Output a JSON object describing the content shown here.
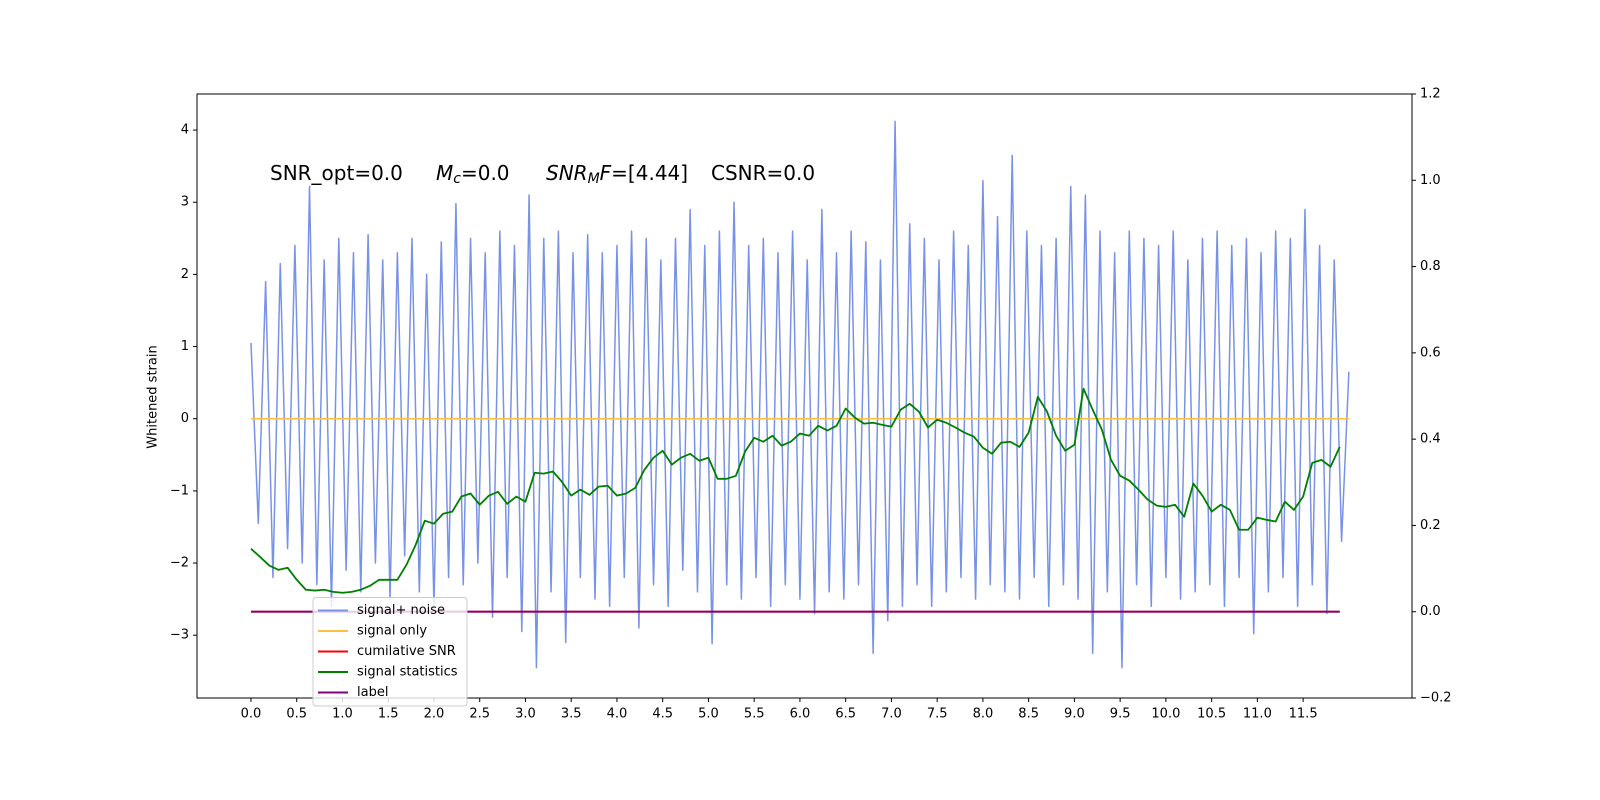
{
  "chart_data": {
    "type": "line",
    "ylabel": "Whitened strain",
    "annotations": [
      [
        "SNR_opt=0.0"
      ],
      [
        "M",
        "c",
        "=0.0"
      ],
      [
        "SNR",
        "M",
        "F",
        "=[4.44]"
      ],
      [
        "CSNR=0.0"
      ]
    ],
    "xlim": [
      -0.59,
      12.69
    ],
    "ylim": [
      -3.87,
      4.5
    ],
    "y2lim": [
      -0.2,
      1.2
    ],
    "xticks": [
      {
        "value": 0,
        "label": "0.0"
      },
      0.5,
      {
        "value": 1,
        "label": "1.0"
      },
      1.5,
      {
        "value": 2,
        "label": "2.0"
      },
      2.5,
      {
        "value": 3,
        "label": "3.0"
      },
      3.5,
      {
        "value": 4,
        "label": "4.0"
      },
      4.5,
      {
        "value": 5,
        "label": "5.0"
      },
      5.5,
      {
        "value": 6,
        "label": "6.0"
      },
      6.5,
      {
        "value": 7,
        "label": "7.0"
      },
      7.5,
      {
        "value": 8,
        "label": "8.0"
      },
      8.5,
      {
        "value": 9,
        "label": "9.0"
      },
      9.5,
      {
        "value": 10,
        "label": "10.0"
      },
      10.5,
      {
        "value": 11,
        "label": "11.0"
      },
      11.5
    ],
    "yticks": [
      {
        "value": -3,
        "label": "−3"
      },
      {
        "value": -2,
        "label": "−2"
      },
      {
        "value": -1,
        "label": "−1"
      },
      0,
      1,
      2,
      3,
      4
    ],
    "y2ticks": [
      {
        "value": -0.2,
        "label": "−0.2"
      },
      {
        "value": 0,
        "label": "0.0"
      },
      0.2,
      0.4,
      0.6,
      0.8,
      {
        "value": 1,
        "label": "1.0"
      },
      1.2
    ],
    "legend": "lower left",
    "series": [
      {
        "name": "signal+ noise",
        "color": "#7893e6",
        "x": [
          0,
          0.08,
          0.16,
          0.24,
          0.32,
          0.4,
          0.48,
          0.56,
          0.64,
          0.72,
          0.8,
          0.88,
          0.96,
          1.04,
          1.12,
          1.2,
          1.28,
          1.36,
          1.44,
          1.52,
          1.6,
          1.68,
          1.76,
          1.84,
          1.92,
          2,
          2.08,
          2.16,
          2.24,
          2.32,
          2.4,
          2.48,
          2.56,
          2.64,
          2.72,
          2.8,
          2.88,
          2.96,
          3.04,
          3.12,
          3.2,
          3.28,
          3.36,
          3.44,
          3.52,
          3.6,
          3.68,
          3.76,
          3.84,
          3.92,
          4,
          4.08,
          4.16,
          4.24,
          4.32,
          4.4,
          4.48,
          4.56,
          4.64,
          4.72,
          4.8,
          4.88,
          4.96,
          5.04,
          5.12,
          5.2,
          5.28,
          5.36,
          5.44,
          5.52,
          5.6,
          5.68,
          5.76,
          5.84,
          5.92,
          6,
          6.08,
          6.16,
          6.24,
          6.32,
          6.4,
          6.48,
          6.56,
          6.64,
          6.72,
          6.8,
          6.88,
          6.96,
          7.04,
          7.12,
          7.2,
          7.28,
          7.36,
          7.44,
          7.52,
          7.6,
          7.68,
          7.76,
          7.84,
          7.92,
          8,
          8.08,
          8.16,
          8.24,
          8.32,
          8.4,
          8.48,
          8.56,
          8.64,
          8.72,
          8.8,
          8.88,
          8.96,
          9.04,
          9.12,
          9.2,
          9.28,
          9.36,
          9.44,
          9.52,
          9.6,
          9.68,
          9.76,
          9.84,
          9.92,
          10,
          10.08,
          10.16,
          10.24,
          10.32,
          10.4,
          10.48,
          10.56,
          10.64,
          10.72,
          10.8,
          10.88,
          10.96,
          11.04,
          11.12,
          11.2,
          11.28,
          11.36,
          11.44,
          11.52,
          11.6,
          11.68,
          11.76,
          11.84,
          11.92,
          12
        ],
        "values": [
          1.05,
          -1.45,
          1.9,
          -2.2,
          2.15,
          -1.8,
          2.4,
          -2.0,
          3.22,
          -2.3,
          2.2,
          -2.6,
          2.5,
          -2.1,
          2.3,
          -2.4,
          2.55,
          -2.0,
          2.2,
          -2.5,
          2.3,
          -1.9,
          2.5,
          -2.4,
          2.0,
          -2.6,
          2.45,
          -2.2,
          2.98,
          -2.3,
          2.5,
          -2.0,
          2.3,
          -2.75,
          2.6,
          -2.2,
          2.4,
          -2.95,
          3.1,
          -3.45,
          2.5,
          -2.4,
          2.6,
          -3.1,
          2.3,
          -2.2,
          2.55,
          -2.5,
          2.3,
          -2.6,
          2.4,
          -2.2,
          2.6,
          -2.9,
          2.5,
          -2.3,
          2.2,
          -2.6,
          2.5,
          -2.1,
          2.9,
          -2.4,
          2.4,
          -3.12,
          2.6,
          -2.3,
          3.0,
          -2.5,
          2.4,
          -2.2,
          2.5,
          -2.6,
          2.3,
          -2.3,
          2.6,
          -2.5,
          2.2,
          -2.7,
          2.9,
          -2.4,
          2.3,
          -2.5,
          2.6,
          -2.3,
          2.45,
          -3.25,
          2.2,
          -2.8,
          4.12,
          -2.6,
          2.7,
          -2.3,
          2.5,
          -2.6,
          2.2,
          -2.4,
          2.6,
          -2.2,
          2.4,
          -2.5,
          3.3,
          -2.3,
          2.8,
          -2.4,
          3.65,
          -2.5,
          2.6,
          -2.2,
          2.4,
          -2.6,
          2.5,
          -2.3,
          3.22,
          -2.5,
          3.1,
          -3.25,
          2.6,
          -2.4,
          2.3,
          -3.45,
          2.6,
          -2.3,
          2.5,
          -2.6,
          2.4,
          -2.2,
          2.6,
          -2.5,
          2.2,
          -2.4,
          2.5,
          -2.3,
          2.6,
          -2.6,
          2.4,
          -2.2,
          2.5,
          -2.98,
          2.3,
          -2.4,
          2.6,
          -2.2,
          2.5,
          -2.6,
          2.9,
          -2.3,
          2.4,
          -2.7,
          2.2,
          -1.7,
          0.65
        ]
      },
      {
        "name": "signal only",
        "color": "#ffbf40",
        "x": [
          0,
          12
        ],
        "values": [
          0,
          0
        ]
      },
      {
        "name": "cumilative SNR",
        "color": "#ff0000",
        "axis": "y2",
        "x": [
          0,
          11.9
        ],
        "values": [
          0,
          0
        ]
      },
      {
        "name": "signal statistics",
        "color": "#007f00",
        "axis": "y2",
        "x": [
          0,
          0.1,
          0.2,
          0.3,
          0.4,
          0.5,
          0.6,
          0.7,
          0.8,
          0.9,
          1,
          1.1,
          1.2,
          1.3,
          1.4,
          1.5,
          1.6,
          1.7,
          1.8,
          1.9,
          2,
          2.1,
          2.2,
          2.3,
          2.4,
          2.5,
          2.6,
          2.7,
          2.8,
          2.9,
          3,
          3.1,
          3.2,
          3.3,
          3.4,
          3.5,
          3.6,
          3.7,
          3.8,
          3.9,
          4,
          4.1,
          4.2,
          4.3,
          4.4,
          4.5,
          4.6,
          4.7,
          4.8,
          4.9,
          5,
          5.1,
          5.2,
          5.3,
          5.4,
          5.5,
          5.6,
          5.7,
          5.8,
          5.9,
          6,
          6.1,
          6.2,
          6.3,
          6.4,
          6.5,
          6.6,
          6.7,
          6.8,
          6.9,
          7,
          7.1,
          7.2,
          7.3,
          7.4,
          7.5,
          7.6,
          7.7,
          7.8,
          7.9,
          8,
          8.1,
          8.2,
          8.3,
          8.4,
          8.5,
          8.6,
          8.7,
          8.8,
          8.9,
          9,
          9.1,
          9.2,
          9.3,
          9.4,
          9.5,
          9.6,
          9.7,
          9.8,
          9.9,
          10,
          10.1,
          10.2,
          10.3,
          10.4,
          10.5,
          10.6,
          10.7,
          10.8,
          10.9,
          11,
          11.1,
          11.2,
          11.3,
          11.4,
          11.5,
          11.6,
          11.7,
          11.8,
          11.9
        ],
        "values": [
          0.146,
          0.127,
          0.107,
          0.097,
          0.102,
          0.074,
          0.051,
          0.049,
          0.051,
          0.046,
          0.044,
          0.046,
          0.051,
          0.06,
          0.074,
          0.074,
          0.074,
          0.109,
          0.155,
          0.211,
          0.204,
          0.227,
          0.232,
          0.267,
          0.274,
          0.248,
          0.269,
          0.278,
          0.25,
          0.267,
          0.255,
          0.322,
          0.32,
          0.325,
          0.301,
          0.269,
          0.283,
          0.271,
          0.29,
          0.292,
          0.269,
          0.274,
          0.287,
          0.329,
          0.357,
          0.373,
          0.341,
          0.357,
          0.366,
          0.35,
          0.357,
          0.308,
          0.308,
          0.315,
          0.371,
          0.403,
          0.394,
          0.408,
          0.385,
          0.394,
          0.413,
          0.408,
          0.431,
          0.42,
          0.431,
          0.471,
          0.45,
          0.436,
          0.438,
          0.433,
          0.429,
          0.468,
          0.482,
          0.464,
          0.427,
          0.445,
          0.438,
          0.427,
          0.415,
          0.406,
          0.38,
          0.366,
          0.392,
          0.394,
          0.382,
          0.415,
          0.498,
          0.464,
          0.408,
          0.373,
          0.387,
          0.517,
          0.468,
          0.422,
          0.352,
          0.315,
          0.304,
          0.283,
          0.26,
          0.246,
          0.243,
          0.248,
          0.22,
          0.297,
          0.269,
          0.232,
          0.248,
          0.236,
          0.19,
          0.19,
          0.218,
          0.213,
          0.209,
          0.255,
          0.236,
          0.267,
          0.345,
          0.352,
          0.336,
          0.382
        ]
      },
      {
        "name": "label",
        "color": "#800080",
        "axis": "y2",
        "x": [
          0,
          11.9
        ],
        "values": [
          0,
          0
        ]
      }
    ]
  }
}
